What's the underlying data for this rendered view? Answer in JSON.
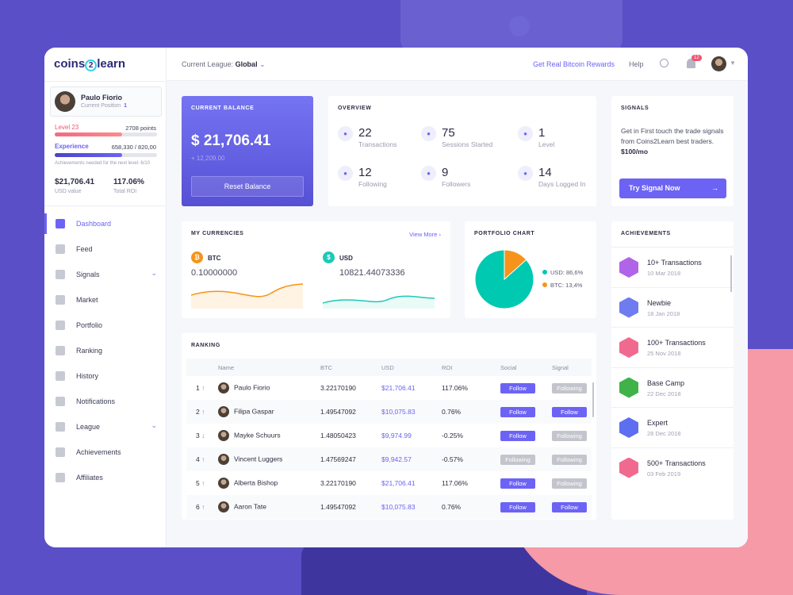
{
  "brand": {
    "logo_pre": "coins",
    "logo_mid": "2",
    "logo_post": "learn"
  },
  "header": {
    "league_label": "Current League:",
    "league_value": "Global",
    "rewards_link": "Get Real Bitcoin Rewards",
    "help": "Help",
    "notif_count": "12"
  },
  "profile": {
    "name": "Paulo Fiorio",
    "position_label": "Current Position",
    "position": "1",
    "level": "Level 23",
    "points": "2708 points",
    "level_progress": 0.66,
    "experience_label": "Experience",
    "experience": "658,330 / 820,00",
    "experience_progress": 0.66,
    "achievements_note": "Achievements needed for the next level: 6/10",
    "usd_value": "$21,706.41",
    "usd_label": "USD value",
    "roi": "117.06%",
    "roi_label": "Total ROI"
  },
  "nav": [
    {
      "label": "Dashboard",
      "icon": "dashboard-icon",
      "active": true
    },
    {
      "label": "Feed",
      "icon": "feed-icon"
    },
    {
      "label": "Signals",
      "icon": "signals-icon",
      "chevron": true
    },
    {
      "label": "Market",
      "icon": "market-icon"
    },
    {
      "label": "Portfolio",
      "icon": "portfolio-icon"
    },
    {
      "label": "Ranking",
      "icon": "ranking-icon"
    },
    {
      "label": "History",
      "icon": "history-icon"
    },
    {
      "label": "Notifications",
      "icon": "bell-icon"
    },
    {
      "label": "League",
      "icon": "trophy-icon",
      "chevron": true
    },
    {
      "label": "Achievements",
      "icon": "medal-icon"
    },
    {
      "label": "Affiliates",
      "icon": "affiliates-icon"
    }
  ],
  "balance": {
    "title": "CURRENT BALANCE",
    "amount": "$ 21,706.41",
    "change": "+ 12,209.00",
    "reset": "Reset Balance"
  },
  "overview": {
    "title": "OVERVIEW",
    "items": [
      {
        "n": "22",
        "t": "Transactions"
      },
      {
        "n": "75",
        "t": "Sessions Started"
      },
      {
        "n": "1",
        "t": "Level"
      },
      {
        "n": "12",
        "t": "Following"
      },
      {
        "n": "9",
        "t": "Followers"
      },
      {
        "n": "14",
        "t": "Days Logged In"
      }
    ]
  },
  "signals": {
    "title": "SIGNALS",
    "text": "Get in First touch the trade signals from Coins2Learn best traders.",
    "price": "$100/mo",
    "button": "Try Signal Now"
  },
  "currencies": {
    "title": "MY CURRENCIES",
    "view_more": "View More",
    "btc": {
      "label": "BTC",
      "value": "0.10000000",
      "color": "#f7931a"
    },
    "usd": {
      "label": "USD",
      "value": "10821.44073336",
      "color": "#1ec9b7"
    }
  },
  "portfolio": {
    "title": "PORTFOLIO CHART",
    "legend": [
      {
        "label": "USD: 86,6%",
        "color": "#00c9b1"
      },
      {
        "label": "BTC: 13,4%",
        "color": "#f7931a"
      }
    ]
  },
  "chart_data": {
    "type": "pie",
    "title": "PORTFOLIO CHART",
    "slices": [
      {
        "label": "USD",
        "value": 86.6,
        "color": "#00c9b1"
      },
      {
        "label": "BTC",
        "value": 13.4,
        "color": "#f7931a"
      }
    ]
  },
  "achievements": {
    "title": "ACHIEVEMENTS",
    "items": [
      {
        "n": "10+ Transactions",
        "d": "10 Mar 2018",
        "c": "#b064e8"
      },
      {
        "n": "Newbie",
        "d": "18 Jan 2018",
        "c": "#6f7cf0"
      },
      {
        "n": "100+ Transactions",
        "d": "25 Nov 2018",
        "c": "#f06a8f"
      },
      {
        "n": "Base Camp",
        "d": "22 Dec 2018",
        "c": "#3fb24a"
      },
      {
        "n": "Expert",
        "d": "28 Dec 2018",
        "c": "#5d6ef0"
      },
      {
        "n": "500+ Transactions",
        "d": "03 Feb 2019",
        "c": "#f06a8f"
      }
    ]
  },
  "ranking": {
    "title": "RANKING",
    "columns": [
      "Name",
      "BTC",
      "USD",
      "ROI",
      "Social",
      "Signal"
    ],
    "rows": [
      {
        "rank": "1",
        "dir": "up",
        "name": "Paulo Fiorio",
        "btc": "3.22170190",
        "usd": "$21,706.41",
        "roi": "117.06%",
        "social": "Follow",
        "signal": "Following"
      },
      {
        "rank": "2",
        "dir": "up",
        "name": "Filipa Gaspar",
        "btc": "1.49547092",
        "usd": "$10,075.83",
        "roi": "0.76%",
        "social": "Follow",
        "signal": "Follow"
      },
      {
        "rank": "3",
        "dir": "down",
        "name": "Mayke Schuurs",
        "btc": "1.48050423",
        "usd": "$9,974.99",
        "roi": "-0.25%",
        "social": "Follow",
        "signal": "Following"
      },
      {
        "rank": "4",
        "dir": "up",
        "name": "Vincent Luggers",
        "btc": "1.47569247",
        "usd": "$9,942.57",
        "roi": "-0.57%",
        "social": "Following",
        "signal": "Following"
      },
      {
        "rank": "5",
        "dir": "up",
        "name": "Alberta Bishop",
        "btc": "3.22170190",
        "usd": "$21,706.41",
        "roi": "117.06%",
        "social": "Follow",
        "signal": "Following"
      },
      {
        "rank": "6",
        "dir": "up",
        "name": "Aaron Tate",
        "btc": "1.49547092",
        "usd": "$10,075.83",
        "roi": "0.76%",
        "social": "Follow",
        "signal": "Follow"
      }
    ]
  }
}
